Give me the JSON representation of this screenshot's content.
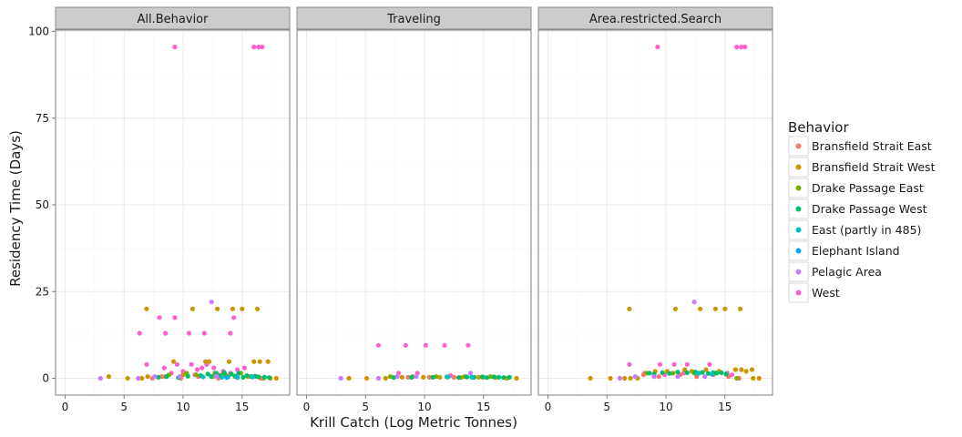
{
  "chart_data": {
    "type": "scatter",
    "facet_strips": [
      "All.Behavior",
      "Traveling",
      "Area.restricted.Search"
    ],
    "xlabel": "Krill Catch (Log Metric Tonnes)",
    "ylabel": "Residency Time (Days)",
    "xlim": [
      -0.9,
      18.9
    ],
    "ylim": [
      -5,
      100
    ],
    "x_ticks": [
      0,
      5,
      10,
      15
    ],
    "y_ticks": [
      0,
      25,
      50,
      75,
      100
    ],
    "grid": true,
    "legend": {
      "title": "Behavior",
      "placement": "right",
      "entries": [
        {
          "name": "Bransfield Strait East",
          "color": "#F8766D"
        },
        {
          "name": "Bransfield Strait West",
          "color": "#CD9600"
        },
        {
          "name": "Drake Passage East",
          "color": "#7CAE00"
        },
        {
          "name": "Drake Passage West",
          "color": "#00BE67"
        },
        {
          "name": "East (partly in 485)",
          "color": "#00BFC4"
        },
        {
          "name": "Elephant Island",
          "color": "#00A9FF"
        },
        {
          "name": "Pelagic Area",
          "color": "#C77CFF"
        },
        {
          "name": "West",
          "color": "#FF61CC"
        }
      ]
    },
    "panels": [
      {
        "strip": "All.Behavior",
        "series": [
          {
            "name": "West",
            "points": [
              [
                9.3,
                95.5
              ],
              [
                16.0,
                95.5
              ],
              [
                16.4,
                95.5
              ],
              [
                16.7,
                95.5
              ],
              [
                6.3,
                13
              ],
              [
                8.0,
                17.5
              ],
              [
                9.3,
                17.5
              ],
              [
                8.5,
                13
              ],
              [
                10.5,
                13
              ],
              [
                11.8,
                13
              ],
              [
                14.0,
                13
              ],
              [
                14.3,
                17.5
              ],
              [
                6.9,
                4
              ],
              [
                8.4,
                3
              ],
              [
                9.5,
                4
              ],
              [
                10.0,
                2
              ],
              [
                10.7,
                4
              ],
              [
                11.2,
                2.5
              ],
              [
                11.6,
                3
              ],
              [
                12.0,
                4
              ],
              [
                12.6,
                3
              ],
              [
                13.4,
                2
              ],
              [
                14.6,
                2.5
              ],
              [
                15.2,
                3
              ],
              [
                9.0,
                1.5
              ],
              [
                11.0,
                1
              ],
              [
                13.0,
                1
              ],
              [
                14.0,
                1.5
              ]
            ]
          },
          {
            "name": "Bransfield Strait West",
            "points": [
              [
                6.9,
                20
              ],
              [
                10.8,
                20
              ],
              [
                12.9,
                20
              ],
              [
                14.2,
                20
              ],
              [
                15.0,
                20
              ],
              [
                16.3,
                20
              ],
              [
                9.2,
                4.8
              ],
              [
                11.9,
                4.8
              ],
              [
                12.2,
                4.8
              ],
              [
                13.9,
                4.8
              ],
              [
                16.0,
                4.8
              ],
              [
                16.5,
                4.8
              ],
              [
                17.2,
                4.8
              ],
              [
                3.7,
                0.5
              ],
              [
                5.3,
                0
              ],
              [
                6.5,
                0
              ],
              [
                7.0,
                0.5
              ],
              [
                8.5,
                0.5
              ],
              [
                10.0,
                1
              ],
              [
                12.5,
                0.5
              ],
              [
                15.5,
                0.5
              ],
              [
                16.8,
                0
              ],
              [
                17.4,
                0
              ],
              [
                17.9,
                0
              ]
            ]
          },
          {
            "name": "Bransfield Strait East",
            "points": [
              [
                7.4,
                0
              ],
              [
                8.2,
                0.5
              ],
              [
                9.8,
                0
              ],
              [
                11.3,
                0.5
              ],
              [
                13.0,
                0
              ],
              [
                14.4,
                0.5
              ],
              [
                15.7,
                0.5
              ],
              [
                16.6,
                0
              ]
            ]
          },
          {
            "name": "Drake Passage East",
            "points": [
              [
                8.8,
                1
              ],
              [
                10.3,
                1.5
              ],
              [
                11.1,
                1
              ],
              [
                12.7,
                1.5
              ],
              [
                13.6,
                1
              ],
              [
                14.9,
                1.5
              ],
              [
                16.2,
                0.5
              ]
            ]
          },
          {
            "name": "Drake Passage West",
            "points": [
              [
                7.9,
                0.3
              ],
              [
                8.6,
                0.5
              ],
              [
                9.6,
                0.2
              ],
              [
                10.4,
                0.6
              ],
              [
                11.5,
                0.8
              ],
              [
                12.1,
                1.2
              ],
              [
                12.4,
                0.5
              ],
              [
                12.8,
                1.5
              ],
              [
                13.2,
                0.8
              ],
              [
                13.5,
                1.6
              ],
              [
                13.8,
                0.4
              ],
              [
                14.1,
                1.2
              ],
              [
                14.4,
                0.6
              ],
              [
                14.7,
                1.4
              ],
              [
                15.1,
                0.3
              ],
              [
                15.4,
                0.8
              ],
              [
                15.8,
                0.5
              ],
              [
                16.1,
                0.6
              ],
              [
                16.4,
                0.4
              ],
              [
                16.9,
                0.3
              ],
              [
                17.3,
                0.2
              ]
            ]
          },
          {
            "name": "East (partly in 485)",
            "points": [
              [
                11.7,
                0.4
              ],
              [
                13.3,
                0.3
              ],
              [
                14.6,
                0.2
              ],
              [
                15.9,
                0.4
              ]
            ]
          },
          {
            "name": "Elephant Island",
            "points": [
              [
                13.7,
                0.2
              ]
            ]
          },
          {
            "name": "Pelagic Area",
            "points": [
              [
                12.4,
                22
              ],
              [
                3.0,
                0
              ],
              [
                6.2,
                0
              ],
              [
                7.6,
                0.5
              ],
              [
                9.7,
                0.5
              ],
              [
                12.8,
                0.5
              ]
            ]
          }
        ]
      },
      {
        "strip": "Traveling",
        "series": [
          {
            "name": "West",
            "points": [
              [
                6.1,
                9.5
              ],
              [
                8.4,
                9.5
              ],
              [
                10.1,
                9.5
              ],
              [
                11.7,
                9.5
              ],
              [
                13.7,
                9.5
              ],
              [
                7.8,
                1.5
              ],
              [
                9.4,
                1.5
              ],
              [
                12.2,
                0.8
              ]
            ]
          },
          {
            "name": "Bransfield Strait West",
            "points": [
              [
                3.6,
                0
              ],
              [
                5.1,
                0
              ],
              [
                6.7,
                0
              ],
              [
                8.1,
                0.3
              ],
              [
                9.9,
                0.3
              ],
              [
                11.3,
                0.3
              ],
              [
                13.1,
                0.2
              ],
              [
                14.6,
                0.3
              ],
              [
                16.0,
                0.2
              ],
              [
                17.0,
                0
              ],
              [
                17.8,
                0
              ]
            ]
          },
          {
            "name": "Bransfield Strait East",
            "points": [
              [
                8.6,
                0.3
              ],
              [
                10.4,
                0.3
              ],
              [
                12.5,
                0.3
              ],
              [
                15.0,
                0.3
              ]
            ]
          },
          {
            "name": "Drake Passage East",
            "points": [
              [
                7.1,
                0.5
              ],
              [
                9.0,
                0.5
              ],
              [
                11.0,
                0.5
              ],
              [
                13.4,
                0.5
              ],
              [
                15.6,
                0.5
              ]
            ]
          },
          {
            "name": "Drake Passage West",
            "points": [
              [
                7.4,
                0.2
              ],
              [
                8.9,
                0.3
              ],
              [
                10.7,
                0.3
              ],
              [
                11.9,
                0.4
              ],
              [
                12.9,
                0.2
              ],
              [
                13.6,
                0.4
              ],
              [
                14.2,
                0.3
              ],
              [
                14.9,
                0.4
              ],
              [
                15.3,
                0.2
              ],
              [
                15.9,
                0.4
              ],
              [
                16.3,
                0.3
              ],
              [
                16.7,
                0.2
              ],
              [
                17.2,
                0.3
              ]
            ]
          },
          {
            "name": "East (partly in 485)",
            "points": [
              [
                12.0,
                0.4
              ],
              [
                14.0,
                0.3
              ]
            ]
          },
          {
            "name": "Pelagic Area",
            "points": [
              [
                2.9,
                0
              ],
              [
                6.1,
                0
              ],
              [
                7.7,
                0.5
              ],
              [
                9.3,
                0.5
              ],
              [
                13.9,
                1.5
              ]
            ]
          }
        ]
      },
      {
        "strip": "Area.restricted.Search",
        "series": [
          {
            "name": "West",
            "points": [
              [
                9.3,
                95.5
              ],
              [
                16.0,
                95.5
              ],
              [
                16.4,
                95.5
              ],
              [
                16.7,
                95.5
              ],
              [
                6.9,
                4
              ],
              [
                9.5,
                4
              ],
              [
                10.7,
                4
              ],
              [
                11.8,
                4
              ],
              [
                13.7,
                4
              ],
              [
                8.2,
                1.5
              ],
              [
                9.9,
                1
              ],
              [
                11.5,
                1.5
              ],
              [
                15.2,
                1.5
              ],
              [
                15.6,
                1
              ]
            ]
          },
          {
            "name": "Bransfield Strait West",
            "points": [
              [
                6.9,
                20
              ],
              [
                10.8,
                20
              ],
              [
                12.9,
                20
              ],
              [
                14.2,
                20
              ],
              [
                15.0,
                20
              ],
              [
                16.3,
                20
              ],
              [
                3.6,
                0
              ],
              [
                5.3,
                0
              ],
              [
                6.5,
                0
              ],
              [
                7.0,
                0
              ],
              [
                7.6,
                0
              ],
              [
                9.1,
                2
              ],
              [
                10.1,
                2
              ],
              [
                11.6,
                2.5
              ],
              [
                12.2,
                2
              ],
              [
                13.4,
                2.5
              ],
              [
                14.5,
                2
              ],
              [
                15.9,
                2.5
              ],
              [
                16.4,
                2.5
              ],
              [
                16.8,
                2
              ],
              [
                17.3,
                2.5
              ],
              [
                17.4,
                0
              ],
              [
                17.9,
                0
              ]
            ]
          },
          {
            "name": "Bransfield Strait East",
            "points": [
              [
                8.1,
                1
              ],
              [
                9.4,
                0.5
              ],
              [
                11.2,
                1
              ],
              [
                12.6,
                0.5
              ],
              [
                14.0,
                1
              ],
              [
                15.3,
                0.5
              ],
              [
                16.2,
                0
              ]
            ]
          },
          {
            "name": "Drake Passage East",
            "points": [
              [
                8.4,
                1.5
              ],
              [
                10.6,
                1.5
              ],
              [
                12.4,
                1.5
              ],
              [
                14.2,
                1.5
              ],
              [
                16.0,
                0
              ]
            ]
          },
          {
            "name": "Drake Passage West",
            "points": [
              [
                8.6,
                1.5
              ],
              [
                9.0,
                1.2
              ],
              [
                9.7,
                1.6
              ],
              [
                10.3,
                1.4
              ],
              [
                11.0,
                1.8
              ],
              [
                11.8,
                1.6
              ],
              [
                12.5,
                1.8
              ],
              [
                12.8,
                1.5
              ],
              [
                13.1,
                1.7
              ],
              [
                13.6,
                1.4
              ],
              [
                14.0,
                1.6
              ],
              [
                14.3,
                1.5
              ],
              [
                14.7,
                1.6
              ],
              [
                15.1,
                1.2
              ]
            ]
          },
          {
            "name": "East (partly in 485)",
            "points": [
              [
                12.7,
                1.4
              ],
              [
                13.9,
                1.2
              ]
            ]
          },
          {
            "name": "Pelagic Area",
            "points": [
              [
                12.4,
                22
              ],
              [
                6.1,
                0
              ],
              [
                7.4,
                0.5
              ],
              [
                9.0,
                0.5
              ],
              [
                11.0,
                0.5
              ],
              [
                13.3,
                0.5
              ]
            ]
          }
        ]
      }
    ]
  }
}
